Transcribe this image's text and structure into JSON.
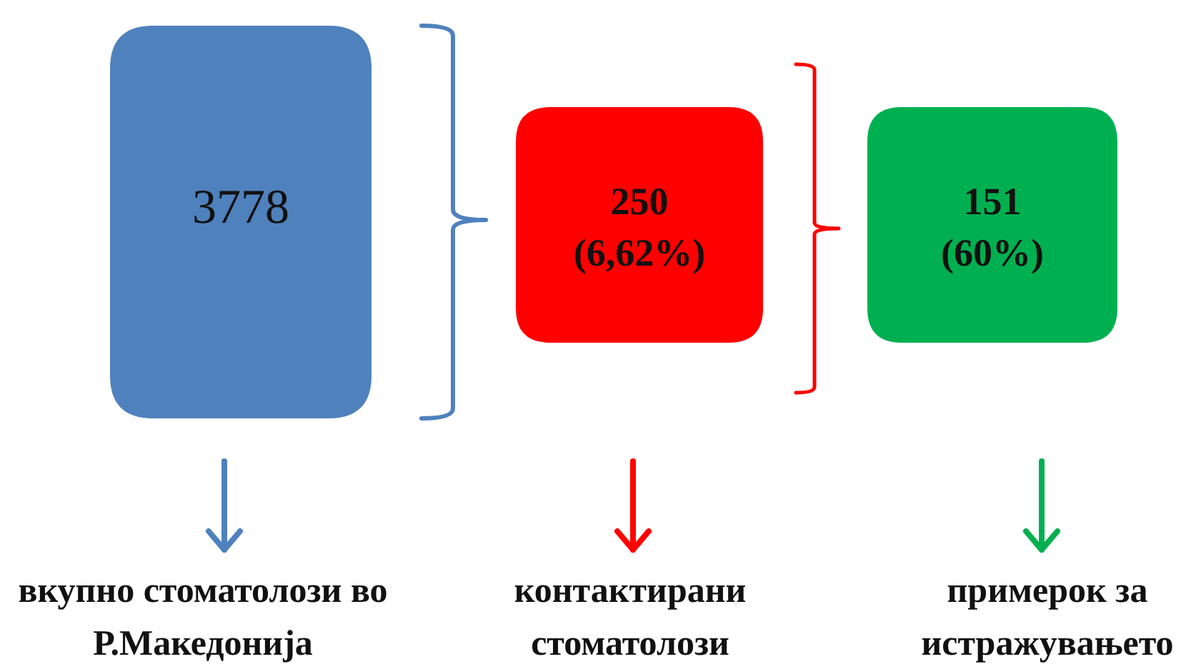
{
  "chart_data": {
    "type": "other",
    "categories": [
      "вкупно стоматолози во Р.Македонија",
      "контактирани стоматолози",
      "примерок за истражувањето"
    ],
    "values": [
      3778,
      250,
      151
    ],
    "value_labels": [
      "3778",
      "250 (6,62%)",
      "151 (60%)"
    ],
    "colors": [
      "#4f81bd",
      "#ff0000",
      "#00b050"
    ]
  }
}
